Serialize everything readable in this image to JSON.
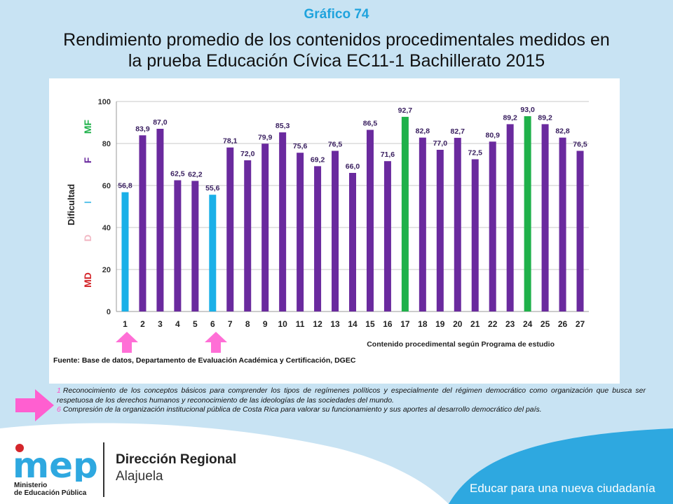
{
  "header": {
    "kicker": "Gráfico 74",
    "title_line1": "Rendimiento promedio de los contenidos procedimentales medidos en",
    "title_line2": "la prueba Educación Cívica EC11-1 Bachillerato 2015"
  },
  "chart_data": {
    "type": "bar",
    "categories": [
      "1",
      "2",
      "3",
      "4",
      "5",
      "6",
      "7",
      "8",
      "9",
      "10",
      "11",
      "12",
      "13",
      "14",
      "15",
      "16",
      "17",
      "18",
      "19",
      "20",
      "21",
      "22",
      "23",
      "24",
      "25",
      "26",
      "27"
    ],
    "values": [
      56.8,
      83.9,
      87.0,
      62.5,
      62.2,
      55.6,
      78.1,
      72.0,
      79.9,
      85.3,
      75.6,
      69.2,
      76.5,
      66.0,
      86.5,
      71.6,
      92.7,
      82.8,
      77.0,
      82.7,
      72.5,
      80.9,
      89.2,
      93.0,
      89.2,
      82.8,
      76.5
    ],
    "data_labels": [
      "56,8",
      "83,9",
      "87,0",
      "62,5",
      "62,2",
      "55,6",
      "78,1",
      "72,0",
      "79,9",
      "85,3",
      "75,6",
      "69,2",
      "76,5",
      "66,0",
      "86,5",
      "71,6",
      "92,7",
      "82,8",
      "77,0",
      "82,7",
      "72,5",
      "80,9",
      "89,2",
      "93,0",
      "89,2",
      "82,8",
      "76,5"
    ],
    "bar_colors": [
      "#1ab0e8",
      "#6a2a9e",
      "#6a2a9e",
      "#6a2a9e",
      "#6a2a9e",
      "#1ab0e8",
      "#6a2a9e",
      "#6a2a9e",
      "#6a2a9e",
      "#6a2a9e",
      "#6a2a9e",
      "#6a2a9e",
      "#6a2a9e",
      "#6a2a9e",
      "#6a2a9e",
      "#6a2a9e",
      "#1fb14a",
      "#6a2a9e",
      "#6a2a9e",
      "#6a2a9e",
      "#6a2a9e",
      "#6a2a9e",
      "#6a2a9e",
      "#1fb14a",
      "#6a2a9e",
      "#6a2a9e",
      "#6a2a9e"
    ],
    "ylim": [
      0,
      100
    ],
    "yticks": [
      "0",
      "20",
      "40",
      "60",
      "80",
      "100"
    ],
    "ylabel": "Dificultad",
    "xlabel": "Contenido procedimental según Programa de estudio",
    "grid": true,
    "difficulty_bands": [
      {
        "label": "MD",
        "color": "#d4262b"
      },
      {
        "label": "D",
        "color": "#f2b8c4"
      },
      {
        "label": "I",
        "color": "#5bc3ea"
      },
      {
        "label": "F",
        "color": "#6a2a9e"
      },
      {
        "label": "MF",
        "color": "#1fb14a"
      }
    ],
    "highlighted_categories": [
      "1",
      "6"
    ]
  },
  "source": "Fuente: Base de datos, Departamento de Evaluación Académica y Certificación, DGEC",
  "notes": [
    {
      "num": "1",
      "text": "Reconocimiento de los conceptos básicos para comprender los tipos de regímenes políticos y especialmente del régimen democrático como organización que busca ser respetuosa de los derechos humanos y reconocimiento de las ideologías de las sociedades del mundo."
    },
    {
      "num": "6",
      "text": "Compresión de la organización institucional pública de Costa Rica para valorar su funcionamiento y sus aportes al desarrollo democrático del país."
    }
  ],
  "footer": {
    "logo_text": "mep",
    "ministry_line1": "Ministerio",
    "ministry_line2": "de Educación Pública",
    "region_line1": "Dirección Regional",
    "region_line2": "Alajuela",
    "slogan": "Educar para una nueva ciudadanía"
  },
  "colors": {
    "accent": "#1fa3dd",
    "pink": "#ff4fc8",
    "background": "#c8e3f3"
  }
}
